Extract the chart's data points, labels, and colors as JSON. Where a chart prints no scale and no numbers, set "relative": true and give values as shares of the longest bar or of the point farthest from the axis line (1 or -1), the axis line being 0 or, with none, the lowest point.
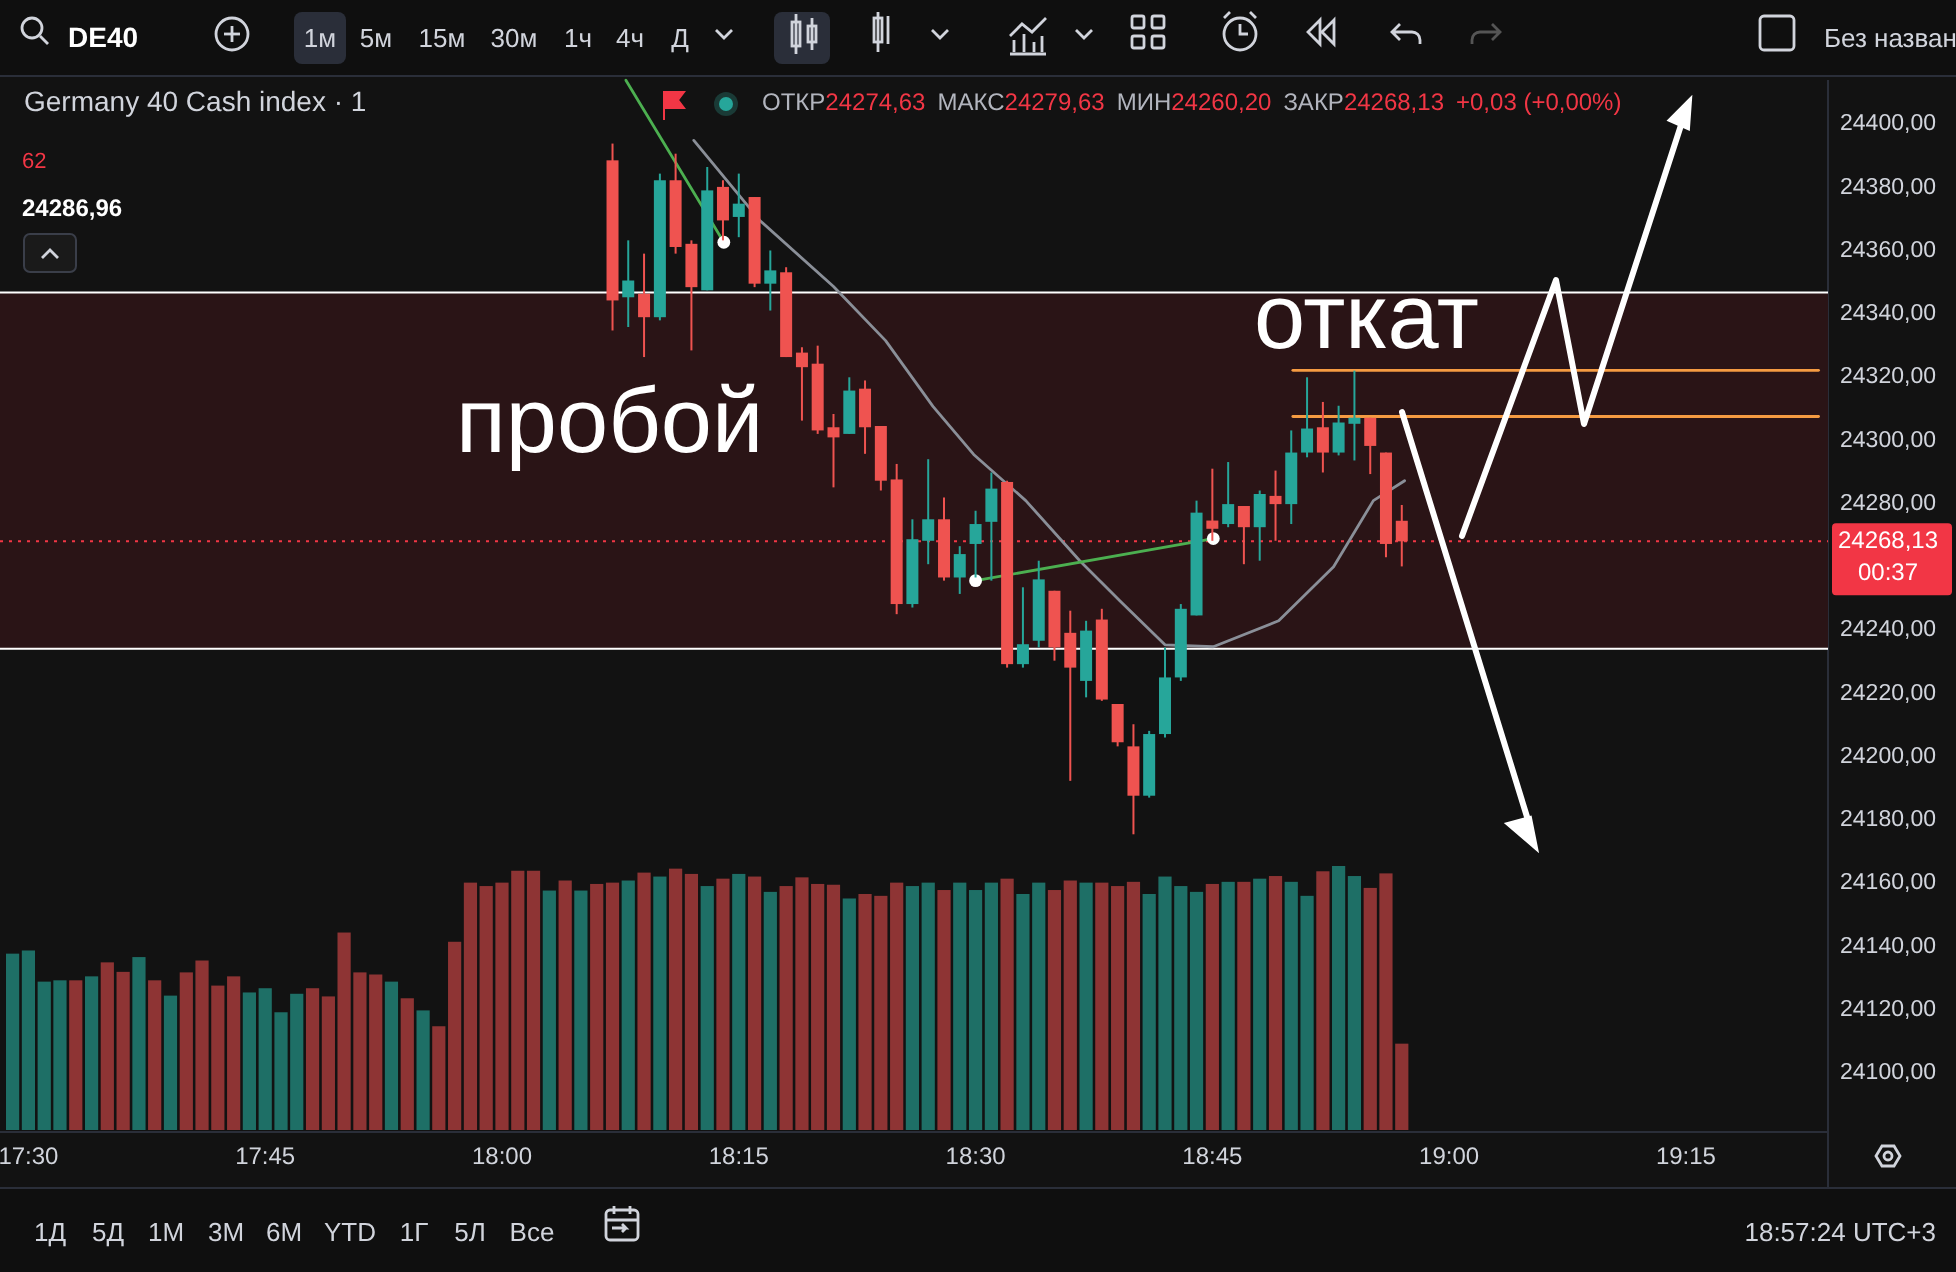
{
  "chart_data": [
    {
      "type": "candlestick",
      "title": "Germany 40 Cash index · 1",
      "x": [
        18.1167,
        18.1333,
        18.15,
        18.1667,
        18.1833,
        18.2,
        18.2167,
        18.2333,
        18.25,
        18.2667,
        18.2833,
        18.3,
        18.3167,
        18.3333,
        18.35,
        18.3667,
        18.3833,
        18.4,
        18.4167,
        18.4333,
        18.45,
        18.4667,
        18.4833,
        18.5,
        18.5167,
        18.5333,
        18.55,
        18.5667,
        18.5833,
        18.6,
        18.6167,
        18.6333,
        18.65,
        18.6667,
        18.6833,
        18.7,
        18.7167,
        18.7333,
        18.75,
        18.7667,
        18.7833,
        18.8,
        18.8167,
        18.8333,
        18.85,
        18.8667,
        18.8833,
        18.9,
        18.9167,
        18.9333,
        18.95
      ],
      "ohlc": [
        [
          24388.6,
          24393.9,
          24334.8,
          24344.3
        ],
        [
          24345.3,
          24363.3,
          24335.9,
          24350.6
        ],
        [
          24346.4,
          24359.1,
          24326.4,
          24339.0
        ],
        [
          24339.0,
          24384.4,
          24338.0,
          24382.3
        ],
        [
          24382.3,
          24390.7,
          24359.1,
          24361.2
        ],
        [
          24362.2,
          24363.3,
          24328.5,
          24348.5
        ],
        [
          24347.5,
          24386.5,
          24347.5,
          24379.1
        ],
        [
          24380.2,
          24382.3,
          24363.3,
          24369.6
        ],
        [
          24370.7,
          24384.4,
          24364.3,
          24374.9
        ],
        [
          24377.0,
          24377.0,
          24348.5,
          24349.6
        ],
        [
          24349.6,
          24360.1,
          24341.1,
          24353.8
        ],
        [
          24353.2,
          24354.8,
          24326.4,
          24326.4
        ],
        [
          24327.8,
          24329.5,
          24306.3,
          24323.2
        ],
        [
          24324.3,
          24330.0,
          24302.1,
          24303.2
        ],
        [
          24304.2,
          24308.4,
          24285.2,
          24301.0
        ],
        [
          24302.1,
          24320.0,
          24302.1,
          24315.8
        ],
        [
          24316.4,
          24319.0,
          24295.8,
          24304.2
        ],
        [
          24304.6,
          24304.6,
          24284.2,
          24287.3
        ],
        [
          24287.7,
          24292.6,
          24245.1,
          24248.3
        ],
        [
          24248.3,
          24275.1,
          24247.2,
          24268.8
        ],
        [
          24268.3,
          24294.1,
          24260.9,
          24275.1
        ],
        [
          24275.1,
          24282.0,
          24255.7,
          24256.7
        ],
        [
          24256.7,
          24266.6,
          24251.5,
          24264.1
        ],
        [
          24267.3,
          24277.8,
          24256.7,
          24273.6
        ],
        [
          24274.3,
          24289.9,
          24255.7,
          24284.8
        ],
        [
          24286.9,
          24287.3,
          24228.2,
          24229.3
        ],
        [
          24229.3,
          24253.6,
          24228.2,
          24235.6
        ],
        [
          24236.7,
          24262.0,
          24234.6,
          24256.1
        ],
        [
          24252.5,
          24252.5,
          24230.4,
          24234.6
        ],
        [
          24239.2,
          24246.2,
          24192.4,
          24228.2
        ],
        [
          24224.0,
          24243.0,
          24218.8,
          24239.9
        ],
        [
          24243.4,
          24246.8,
          24217.7,
          24218.1
        ],
        [
          24216.7,
          24216.7,
          24203.3,
          24204.6
        ],
        [
          24203.3,
          24210.3,
          24175.5,
          24187.7
        ],
        [
          24187.7,
          24208.2,
          24187.1,
          24207.2
        ],
        [
          24207.2,
          24234.6,
          24206.1,
          24225.1
        ],
        [
          24225.1,
          24248.3,
          24224.0,
          24246.8
        ],
        [
          24244.7,
          24281.0,
          24244.7,
          24277.2
        ],
        [
          24274.7,
          24291.1,
          24268.3,
          24272.1
        ],
        [
          24273.6,
          24293.2,
          24272.6,
          24279.9
        ],
        [
          24279.3,
          24279.3,
          24260.9,
          24272.6
        ],
        [
          24272.6,
          24284.2,
          24262.0,
          24283.1
        ],
        [
          24282.5,
          24290.5,
          24268.3,
          24279.9
        ],
        [
          24279.9,
          24303.2,
          24273.6,
          24296.2
        ],
        [
          24296.2,
          24320.0,
          24294.7,
          24303.8
        ],
        [
          24304.2,
          24312.2,
          24289.9,
          24296.2
        ],
        [
          24296.2,
          24311.0,
          24295.3,
          24305.7
        ],
        [
          24305.3,
          24322.1,
          24293.7,
          24307.2
        ],
        [
          24307.2,
          24307.2,
          24289.4,
          24298.3
        ],
        [
          24296.2,
          24296.2,
          24263.1,
          24267.3
        ],
        [
          24274.63,
          24279.63,
          24260.2,
          24268.13
        ]
      ],
      "series": [
        {
          "type": "line",
          "color": "#8a8f98",
          "x": [
            18.2025,
            18.2722,
            18.35,
            18.405,
            18.455,
            18.498,
            18.553,
            18.61,
            18.652,
            18.7,
            18.751,
            18.82,
            18.878,
            18.92,
            18.953
          ],
          "values": [
            24394.9,
            24369.6,
            24348.7,
            24331.6,
            24310.8,
            24295.6,
            24281.0,
            24262.0,
            24249.4,
            24235.4,
            24234.8,
            24243.0,
            24260.1,
            24281.0,
            24287.3
          ]
        },
        {
          "type": "line",
          "color": "#4caf50",
          "x": [
            18.1308,
            18.2342
          ],
          "values": [
            24413.9,
            24362.7
          ]
        },
        {
          "type": "line",
          "color": "#4caf50",
          "x": [
            18.5,
            18.751
          ],
          "values": [
            24255.7,
            24269.0
          ]
        },
        {
          "type": "line",
          "color": "#f59b42",
          "x": [
            18.835,
            19.39
          ],
          "values": [
            24322.2,
            24322.2
          ]
        },
        {
          "type": "line",
          "color": "#f59b42",
          "x": [
            18.835,
            19.39
          ],
          "values": [
            24307.6,
            24307.6
          ]
        },
        {
          "type": "scatter",
          "color": "#ffffff",
          "marker": "circle",
          "x": [
            18.2342,
            18.5,
            18.751
          ],
          "values": [
            24362.7,
            24255.7,
            24269.0
          ]
        }
      ],
      "xlim": [
        17.47,
        19.4
      ],
      "ylim": [
        24082,
        24414
      ],
      "xticks": [
        {
          "value": 17.5,
          "label": "17:30"
        },
        {
          "value": 17.75,
          "label": "17:45"
        },
        {
          "value": 18,
          "label": "18:00"
        },
        {
          "value": 18.25,
          "label": "18:15"
        },
        {
          "value": 18.5,
          "label": "18:30"
        },
        {
          "value": 18.75,
          "label": "18:45"
        },
        {
          "value": 19,
          "label": "19:00"
        },
        {
          "value": 19.25,
          "label": "19:15"
        }
      ],
      "yticks": [
        {
          "value": 24100,
          "label": "24100,00"
        },
        {
          "value": 24120,
          "label": "24120,00"
        },
        {
          "value": 24140,
          "label": "24140,00"
        },
        {
          "value": 24160,
          "label": "24160,00"
        },
        {
          "value": 24180,
          "label": "24180,00"
        },
        {
          "value": 24200,
          "label": "24200,00"
        },
        {
          "value": 24220,
          "label": "24220,00"
        },
        {
          "value": 24240,
          "label": "24240,00"
        },
        {
          "value": 24280,
          "label": "24280,00"
        },
        {
          "value": 24300,
          "label": "24300,00"
        },
        {
          "value": 24320,
          "label": "24320,00"
        },
        {
          "value": 24340,
          "label": "24340,00"
        },
        {
          "value": 24360,
          "label": "24360,00"
        },
        {
          "value": 24380,
          "label": "24380,00"
        },
        {
          "value": 24400,
          "label": "24400,00"
        }
      ],
      "bands": [
        {
          "axis": "y",
          "from": 24234.2,
          "to": 24346.8,
          "color": "#2a1416"
        }
      ],
      "ref_lines": [
        {
          "axis": "y",
          "value": 24346.8,
          "color": "#ffffff"
        },
        {
          "axis": "y",
          "value": 24234.2,
          "color": "#ffffff"
        },
        {
          "axis": "y",
          "value": 24268.13,
          "label": "24268,13",
          "color": "#f23645",
          "line_style": "dotted"
        }
      ],
      "annotations": [
        "DE40",
        "1м",
        "5м",
        "15м",
        "30м",
        "1ч",
        "4ч",
        "Д",
        "Без назван",
        "ОТКР",
        "24274,63",
        "МАКС",
        "24279,63",
        "МИН",
        "24260,20",
        "ЗАКР",
        "24268,13",
        "+0,03 (+0,00%)",
        "62",
        "24286,96",
        "пробой",
        "откат",
        "00:37",
        "1Д",
        "5Д",
        "1М",
        "3М",
        "6М",
        "YTD",
        "1Г",
        "5Л",
        "Все",
        "18:57:24 UTC+3"
      ]
    },
    {
      "type": "bar",
      "relative": true,
      "xlim": [
        17.47,
        19.4
      ],
      "x": [
        17.4833,
        17.5,
        17.5167,
        17.5333,
        17.55,
        17.5667,
        17.5833,
        17.6,
        17.6167,
        17.6333,
        17.65,
        17.6667,
        17.6833,
        17.7,
        17.7167,
        17.7333,
        17.75,
        17.7667,
        17.7833,
        17.8,
        17.8167,
        17.8333,
        17.85,
        17.8667,
        17.8833,
        17.9,
        17.9167,
        17.9333,
        17.95,
        17.9667,
        17.9833,
        18,
        18.0167,
        18.0333,
        18.05,
        18.0667,
        18.0833,
        18.1,
        18.1167,
        18.1333,
        18.15,
        18.1667,
        18.1833,
        18.2,
        18.2167,
        18.2333,
        18.25,
        18.2667,
        18.2833,
        18.3,
        18.3167,
        18.3333,
        18.35,
        18.3667,
        18.3833,
        18.4,
        18.4167,
        18.4333,
        18.45,
        18.4667,
        18.4833,
        18.5,
        18.5167,
        18.5333,
        18.55,
        18.5667,
        18.5833,
        18.6,
        18.6167,
        18.6333,
        18.65,
        18.6667,
        18.6833,
        18.7,
        18.7167,
        18.7333,
        18.75,
        18.7667,
        18.7833,
        18.8,
        18.8167,
        18.8333,
        18.85,
        18.8667,
        18.8833,
        18.9,
        18.9167,
        18.9333,
        18.95
      ],
      "values": [
        0.668,
        0.68,
        0.562,
        0.567,
        0.567,
        0.582,
        0.635,
        0.599,
        0.655,
        0.567,
        0.509,
        0.597,
        0.642,
        0.547,
        0.582,
        0.521,
        0.537,
        0.446,
        0.516,
        0.537,
        0.506,
        0.748,
        0.597,
        0.589,
        0.562,
        0.499,
        0.453,
        0.393,
        0.713,
        0.937,
        0.924,
        0.937,
        0.982,
        0.982,
        0.907,
        0.945,
        0.907,
        0.932,
        0.937,
        0.945,
        0.975,
        0.96,
        0.99,
        0.97,
        0.924,
        0.952,
        0.97,
        0.96,
        0.902,
        0.924,
        0.957,
        0.932,
        0.929,
        0.877,
        0.894,
        0.887,
        0.937,
        0.924,
        0.937,
        0.909,
        0.937,
        0.909,
        0.937,
        0.952,
        0.894,
        0.937,
        0.909,
        0.945,
        0.937,
        0.937,
        0.924,
        0.94,
        0.894,
        0.96,
        0.924,
        0.902,
        0.932,
        0.94,
        0.94,
        0.952,
        0.962,
        0.94,
        0.887,
        0.98,
        1,
        0.962,
        0.917,
        0.972,
        0.327
      ],
      "colors": [
        "#1e6f66",
        "#1e6f66",
        "#1e6f66",
        "#1e6f66",
        "#8e3434",
        "#1e6f66",
        "#8e3434",
        "#8e3434",
        "#1e6f66",
        "#8e3434",
        "#1e6f66",
        "#8e3434",
        "#8e3434",
        "#8e3434",
        "#8e3434",
        "#1e6f66",
        "#1e6f66",
        "#1e6f66",
        "#1e6f66",
        "#8e3434",
        "#8e3434",
        "#8e3434",
        "#8e3434",
        "#8e3434",
        "#1e6f66",
        "#8e3434",
        "#1e6f66",
        "#8e3434",
        "#8e3434",
        "#8e3434",
        "#8e3434",
        "#8e3434",
        "#8e3434",
        "#8e3434",
        "#1e6f66",
        "#8e3434",
        "#1e6f66",
        "#8e3434",
        "#8e3434",
        "#1e6f66",
        "#8e3434",
        "#1e6f66",
        "#8e3434",
        "#8e3434",
        "#1e6f66",
        "#8e3434",
        "#1e6f66",
        "#8e3434",
        "#1e6f66",
        "#8e3434",
        "#8e3434",
        "#8e3434",
        "#8e3434",
        "#1e6f66",
        "#8e3434",
        "#8e3434",
        "#8e3434",
        "#1e6f66",
        "#1e6f66",
        "#8e3434",
        "#1e6f66",
        "#1e6f66",
        "#1e6f66",
        "#8e3434",
        "#1e6f66",
        "#1e6f66",
        "#8e3434",
        "#8e3434",
        "#1e6f66",
        "#8e3434",
        "#8e3434",
        "#8e3434",
        "#1e6f66",
        "#1e6f66",
        "#1e6f66",
        "#1e6f66",
        "#8e3434",
        "#1e6f66",
        "#8e3434",
        "#1e6f66",
        "#8e3434",
        "#1e6f66",
        "#1e6f66",
        "#8e3434",
        "#1e6f66",
        "#1e6f66",
        "#8e3434",
        "#8e3434",
        "#8e3434"
      ]
    }
  ]
}
